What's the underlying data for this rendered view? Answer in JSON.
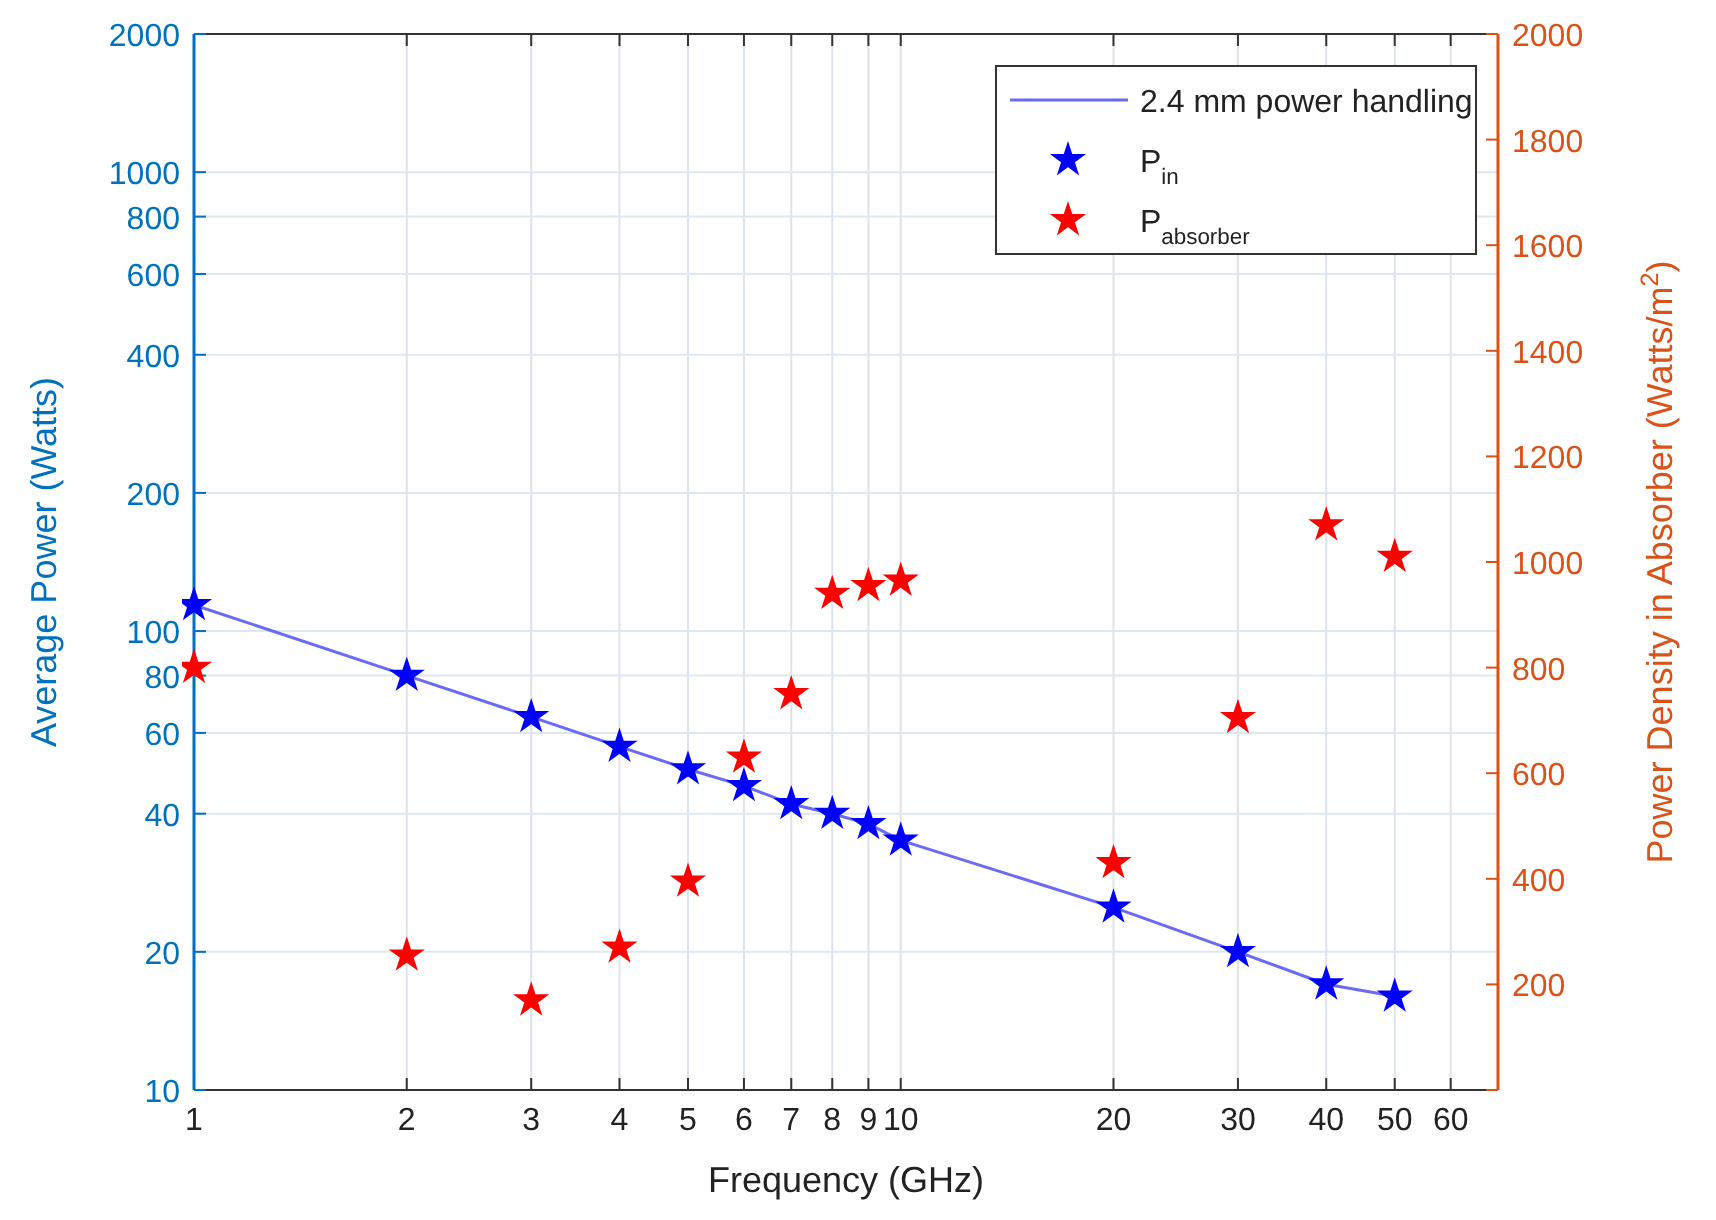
{
  "chart_data": {
    "type": "line",
    "xlabel": "Frequency (GHz)",
    "ylabel": "Average Power (Watts)",
    "y2label": "Power Density in Absorber (Watts/m$^{2}$)",
    "log": "xy",
    "xlim": [
      1,
      70
    ],
    "xticks": [
      1,
      2,
      3,
      4,
      5,
      6,
      7,
      8,
      9,
      10,
      20,
      30,
      40,
      50,
      60
    ],
    "ylim": [
      10,
      2000
    ],
    "yticks": [
      10,
      20,
      40,
      60,
      80,
      100,
      200,
      400,
      600,
      800,
      1000,
      2000
    ],
    "y2lim": [
      0,
      2000
    ],
    "y2ticks": [
      {
        "value": 0,
        "label": null
      },
      200,
      400,
      600,
      800,
      1000,
      1200,
      1400,
      1600,
      1800,
      2000
    ],
    "grid": true,
    "legend": "top right",
    "series": [
      {
        "name": "2.4 mm power handling",
        "type": "line",
        "color": "#6a6af5",
        "marker": "none",
        "line_style": "solid",
        "x": [
          1,
          2,
          3,
          4,
          5,
          6,
          7,
          8,
          9,
          10,
          20,
          30,
          40,
          50
        ],
        "values": [
          114,
          80,
          65,
          56,
          50,
          46,
          42,
          40,
          38,
          35,
          25,
          20,
          17,
          16
        ]
      },
      {
        "name": "P$_{in}$",
        "type": "scatter",
        "color": "#0000ff",
        "marker": "star",
        "x": [
          1,
          2,
          3,
          4,
          5,
          6,
          7,
          8,
          9,
          10,
          20,
          30,
          40,
          50
        ],
        "values": [
          114,
          80,
          65,
          56,
          50,
          46,
          42,
          40,
          38,
          35,
          25,
          20,
          17,
          16
        ]
      },
      {
        "name": "P$_{absorber}$",
        "type": "scatter",
        "color": "#ff0000",
        "marker": "star",
        "axis": "y2",
        "x": [
          1,
          2,
          3,
          4,
          5,
          6,
          7,
          8,
          9,
          10,
          20,
          30,
          40,
          50
        ],
        "values": [
          800,
          255,
          170,
          270,
          395,
          630,
          750,
          940,
          955,
          965,
          430,
          705,
          1070,
          1010
        ]
      }
    ]
  }
}
